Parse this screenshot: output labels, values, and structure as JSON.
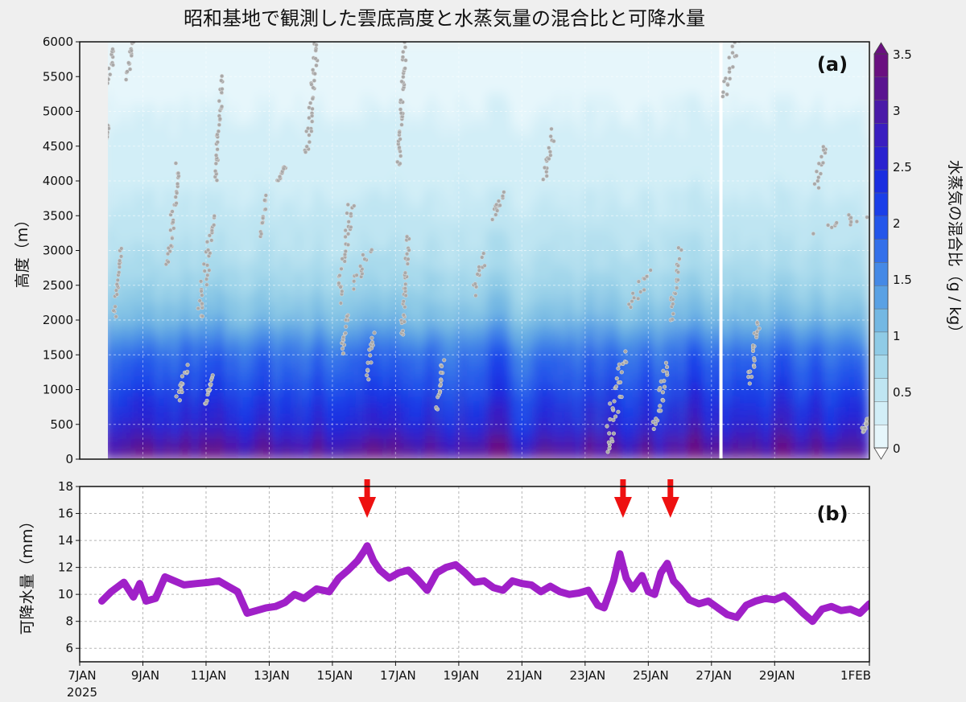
{
  "title": "昭和基地で観測した雲底高度と水蒸気量の混合比と可降水量",
  "colors": {
    "precipitable_water_line": "#a020c8",
    "cloud_base_points": "#a8a8a8",
    "arrows": "#ee1111",
    "colormap": [
      "#e6f6fb",
      "#d2eef7",
      "#bfe5f2",
      "#a9daec",
      "#8fcbe6",
      "#74b8e3",
      "#5aa1e4",
      "#4589e6",
      "#3470ea",
      "#2456ea",
      "#1a3ee8",
      "#1a2ee0",
      "#2a22d0",
      "#3a1ec0",
      "#4a1aa8",
      "#5a1490",
      "#6a1080"
    ]
  },
  "chart_data": [
    {
      "type": "heatmap",
      "panel_label": "(a)",
      "ylabel": "高度（m）",
      "colorbar_label": "水蒸気の混合比（g / kg）",
      "ylim": [
        0,
        6000
      ],
      "yticks": [
        0,
        500,
        1000,
        1500,
        2000,
        2500,
        3000,
        3500,
        4000,
        4500,
        5000,
        5500,
        6000
      ],
      "xlim_days": [
        7,
        32
      ],
      "colorbar_ticks": [
        0,
        0.5,
        1,
        1.5,
        2,
        2.5,
        3,
        3.5
      ],
      "colorbar_range": [
        0,
        3.5
      ],
      "data_gap_day": 27.3,
      "grid": true,
      "mixing_ratio_profile": [
        {
          "height": 100,
          "value": 3.2
        },
        {
          "height": 300,
          "value": 2.8
        },
        {
          "height": 500,
          "value": 2.5
        },
        {
          "height": 800,
          "value": 2.3
        },
        {
          "height": 1000,
          "value": 2.1
        },
        {
          "height": 1300,
          "value": 1.9
        },
        {
          "height": 1500,
          "value": 1.8
        },
        {
          "height": 2000,
          "value": 1.1
        },
        {
          "height": 2500,
          "value": 0.8
        },
        {
          "height": 3000,
          "value": 0.6
        },
        {
          "height": 4000,
          "value": 0.35
        },
        {
          "height": 5000,
          "value": 0.2
        },
        {
          "height": 6000,
          "value": 0.1
        }
      ],
      "cloud_base_tracks": [
        {
          "day": [
            7.9,
            8.1
          ],
          "height": [
            5400,
            6000
          ]
        },
        {
          "day": [
            8.5,
            8.7
          ],
          "height": [
            5500,
            6000
          ]
        },
        {
          "day": [
            8.1,
            8.3
          ],
          "height": [
            2100,
            3000
          ]
        },
        {
          "day": [
            7.8,
            7.9
          ],
          "height": [
            4500,
            4800
          ]
        },
        {
          "day": [
            9.8,
            10.1
          ],
          "height": [
            2800,
            4200
          ]
        },
        {
          "day": [
            10.1,
            10.4
          ],
          "height": [
            900,
            1300
          ]
        },
        {
          "day": [
            10.8,
            11.2
          ],
          "height": [
            2000,
            3500
          ]
        },
        {
          "day": [
            11.0,
            11.2
          ],
          "height": [
            800,
            1200
          ]
        },
        {
          "day": [
            11.3,
            11.5
          ],
          "height": [
            4000,
            5500
          ]
        },
        {
          "day": [
            12.7,
            12.9
          ],
          "height": [
            3200,
            3800
          ]
        },
        {
          "day": [
            13.3,
            13.5
          ],
          "height": [
            4000,
            4200
          ]
        },
        {
          "day": [
            14.2,
            14.5
          ],
          "height": [
            4400,
            6000
          ]
        },
        {
          "day": [
            15.2,
            15.6
          ],
          "height": [
            2300,
            3700
          ]
        },
        {
          "day": [
            15.3,
            15.5
          ],
          "height": [
            1500,
            2100
          ]
        },
        {
          "day": [
            15.7,
            16.2
          ],
          "height": [
            2500,
            3000
          ]
        },
        {
          "day": [
            16.1,
            16.3
          ],
          "height": [
            1200,
            1800
          ]
        },
        {
          "day": [
            17.1,
            17.3
          ],
          "height": [
            4200,
            6000
          ]
        },
        {
          "day": [
            17.2,
            17.4
          ],
          "height": [
            1800,
            3200
          ]
        },
        {
          "day": [
            18.3,
            18.5
          ],
          "height": [
            700,
            1400
          ]
        },
        {
          "day": [
            19.5,
            19.8
          ],
          "height": [
            2400,
            2900
          ]
        },
        {
          "day": [
            20.1,
            20.4
          ],
          "height": [
            3500,
            3800
          ]
        },
        {
          "day": [
            21.7,
            22.0
          ],
          "height": [
            4000,
            4700
          ]
        },
        {
          "day": [
            23.6,
            24.3
          ],
          "height": [
            100,
            1500
          ]
        },
        {
          "day": [
            24.4,
            25.0
          ],
          "height": [
            2200,
            2700
          ]
        },
        {
          "day": [
            25.2,
            25.6
          ],
          "height": [
            400,
            1400
          ]
        },
        {
          "day": [
            25.7,
            26.0
          ],
          "height": [
            2000,
            3000
          ]
        },
        {
          "day": [
            27.4,
            27.8
          ],
          "height": [
            5200,
            6000
          ]
        },
        {
          "day": [
            28.2,
            28.5
          ],
          "height": [
            1100,
            2000
          ]
        },
        {
          "day": [
            30.3,
            30.6
          ],
          "height": [
            3900,
            4500
          ]
        },
        {
          "day": [
            30.5,
            31.8
          ],
          "height": [
            3300,
            3500
          ]
        },
        {
          "day": [
            31.8,
            32.0
          ],
          "height": [
            400,
            600
          ]
        }
      ]
    },
    {
      "type": "line",
      "panel_label": "(b)",
      "ylabel": "可降水量（mm）",
      "ylim": [
        5,
        18
      ],
      "yticks": [
        6,
        8,
        10,
        12,
        14,
        16,
        18
      ],
      "xlim_days": [
        7,
        32
      ],
      "xticks_days": [
        7,
        9,
        11,
        13,
        15,
        17,
        19,
        21,
        23,
        25,
        27,
        29,
        32
      ],
      "xtick_labels": [
        "7JAN",
        "9JAN",
        "11JAN",
        "13JAN",
        "15JAN",
        "17JAN",
        "19JAN",
        "21JAN",
        "23JAN",
        "25JAN",
        "27JAN",
        "29JAN",
        "1FEB"
      ],
      "xtick_year": "2025",
      "grid": true,
      "arrows_at_days": [
        16.1,
        24.2,
        25.7
      ],
      "series": [
        {
          "x": [
            7.7,
            8.0,
            8.4,
            8.7,
            8.9,
            9.1,
            9.4,
            9.7,
            10.0,
            10.3,
            10.7,
            11.1,
            11.4,
            11.7,
            12.0,
            12.3,
            12.6,
            12.9,
            13.2,
            13.5,
            13.8,
            14.1,
            14.5,
            14.9,
            15.2,
            15.5,
            15.8,
            16.0,
            16.1,
            16.3,
            16.5,
            16.8,
            17.1,
            17.4,
            17.7,
            18.0,
            18.3,
            18.6,
            18.9,
            19.2,
            19.5,
            19.8,
            20.1,
            20.4,
            20.7,
            21.0,
            21.3,
            21.6,
            21.9,
            22.2,
            22.5,
            22.8,
            23.1,
            23.4,
            23.6,
            23.9,
            24.1,
            24.3,
            24.5,
            24.8,
            25.0,
            25.2,
            25.4,
            25.6,
            25.8,
            26.0,
            26.3,
            26.6,
            26.9,
            27.2,
            27.5,
            27.8,
            28.1,
            28.4,
            28.7,
            29.0,
            29.3,
            29.6,
            29.9,
            30.2,
            30.5,
            30.8,
            31.1,
            31.4,
            31.7,
            32.0
          ],
          "y": [
            9.5,
            10.2,
            10.9,
            9.8,
            10.8,
            9.5,
            9.7,
            11.3,
            11.0,
            10.7,
            10.8,
            10.9,
            11.0,
            10.6,
            10.2,
            8.6,
            8.8,
            9.0,
            9.1,
            9.4,
            10.0,
            9.7,
            10.4,
            10.2,
            11.2,
            11.8,
            12.5,
            13.2,
            13.6,
            12.5,
            11.8,
            11.2,
            11.6,
            11.8,
            11.1,
            10.3,
            11.6,
            12.0,
            12.2,
            11.6,
            10.9,
            11.0,
            10.5,
            10.3,
            11.0,
            10.8,
            10.7,
            10.2,
            10.6,
            10.2,
            10.0,
            10.1,
            10.3,
            9.2,
            9.0,
            11.0,
            13.0,
            11.2,
            10.4,
            11.4,
            10.2,
            10.0,
            11.6,
            12.3,
            11.0,
            10.5,
            9.6,
            9.3,
            9.5,
            9.0,
            8.5,
            8.3,
            9.2,
            9.5,
            9.7,
            9.6,
            9.9,
            9.3,
            8.6,
            8.0,
            8.9,
            9.1,
            8.8,
            8.9,
            8.6,
            9.3
          ]
        }
      ]
    }
  ]
}
